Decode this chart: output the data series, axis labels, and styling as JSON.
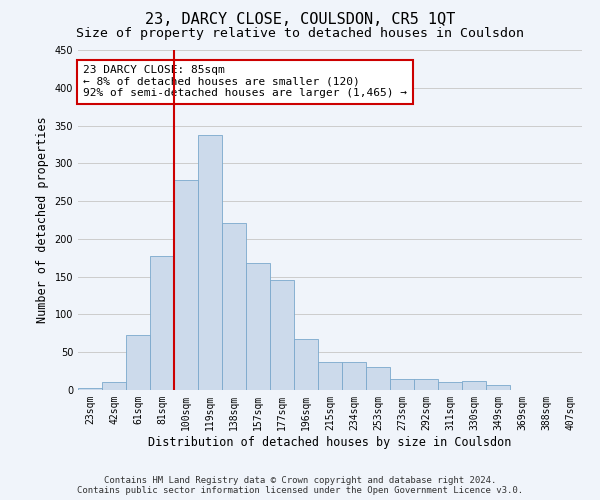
{
  "title": "23, DARCY CLOSE, COULSDON, CR5 1QT",
  "subtitle": "Size of property relative to detached houses in Coulsdon",
  "xlabel": "Distribution of detached houses by size in Coulsdon",
  "ylabel": "Number of detached properties",
  "categories": [
    "23sqm",
    "42sqm",
    "61sqm",
    "81sqm",
    "100sqm",
    "119sqm",
    "138sqm",
    "157sqm",
    "177sqm",
    "196sqm",
    "215sqm",
    "234sqm",
    "253sqm",
    "273sqm",
    "292sqm",
    "311sqm",
    "330sqm",
    "349sqm",
    "369sqm",
    "388sqm",
    "407sqm"
  ],
  "values": [
    3,
    11,
    73,
    178,
    278,
    338,
    221,
    168,
    145,
    68,
    37,
    37,
    30,
    15,
    15,
    10,
    12,
    6,
    0,
    0,
    0
  ],
  "bar_color": "#ccdaeb",
  "bar_edge_color": "#7aa8cc",
  "vline_color": "#cc0000",
  "annotation_text": "23 DARCY CLOSE: 85sqm\n← 8% of detached houses are smaller (120)\n92% of semi-detached houses are larger (1,465) →",
  "annotation_box_color": "#ffffff",
  "annotation_box_edge": "#cc0000",
  "ylim": [
    0,
    450
  ],
  "yticks": [
    0,
    50,
    100,
    150,
    200,
    250,
    300,
    350,
    400,
    450
  ],
  "grid_color": "#cccccc",
  "bg_color": "#f0f4fa",
  "plot_bg_color": "#f0f4fa",
  "footer_line1": "Contains HM Land Registry data © Crown copyright and database right 2024.",
  "footer_line2": "Contains public sector information licensed under the Open Government Licence v3.0.",
  "title_fontsize": 11,
  "subtitle_fontsize": 9.5,
  "axis_label_fontsize": 8.5,
  "tick_fontsize": 7,
  "annotation_fontsize": 8,
  "footer_fontsize": 6.5
}
